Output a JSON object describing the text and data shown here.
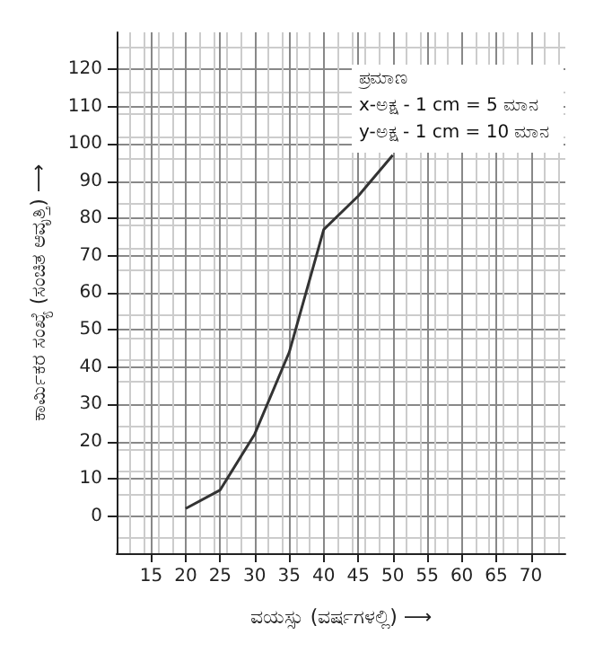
{
  "chart_data": {
    "type": "line",
    "xlabel": "ವಯಸ್ಸು (ವರ್ಷಗಳಲ್ಲಿ) ⟶",
    "ylabel": "ಕಾರ್ಮಿಕರ ಸಂಖ್ಯೆ (ಸಂಚಿತ ಆವೃತ್ತಿ) ⟶",
    "x": [
      20,
      25,
      30,
      35,
      40,
      45,
      50
    ],
    "series": [
      {
        "color": "#333333",
        "values": [
          2,
          7,
          22,
          44,
          77,
          86,
          97
        ]
      }
    ],
    "xlim": [
      10,
      75
    ],
    "xticks": [
      15,
      20,
      25,
      30,
      35,
      40,
      45,
      50,
      55,
      60,
      65,
      70
    ],
    "ylim": [
      -10,
      130
    ],
    "yticks": [
      0,
      10,
      20,
      30,
      40,
      50,
      60,
      70,
      80,
      90,
      100,
      110,
      120
    ],
    "grid": true,
    "marker": "none",
    "line_style": "solid",
    "annotations": [
      "ಪ್ರಮಾಣ",
      "x-ಅಕ್ಷ - 1 cm = 5 ಮಾನ",
      "y-ಅಕ್ಷ - 1 cm = 10 ಮಾನ"
    ]
  }
}
